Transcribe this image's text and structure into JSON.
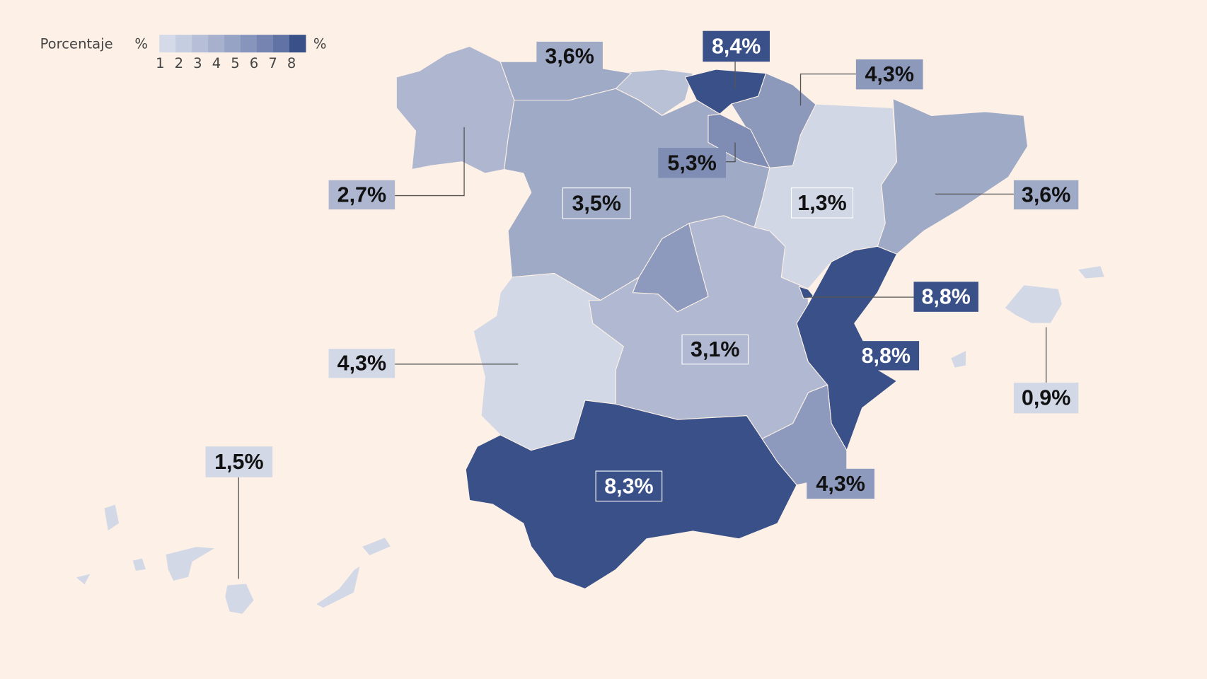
{
  "legend": {
    "title": "Porcentaje",
    "unit": "%",
    "scale": [
      "#d4dae8",
      "#c5cde0",
      "#b6bfd7",
      "#a7b1ce",
      "#97a3c5",
      "#8794bb",
      "#7584b1",
      "#6172a5",
      "#3a5088"
    ],
    "ticks": [
      1,
      2,
      3,
      4,
      5,
      6,
      7,
      8
    ],
    "end_unit": "%"
  },
  "regions": [
    {
      "label": "2,7%",
      "color": "#aeb6d0"
    },
    {
      "label": "3,6%",
      "color": "#9faac6"
    },
    {
      "label": "8,4%",
      "color": "#3a5088"
    },
    {
      "label": "4,3%",
      "color": "#8d99bb"
    },
    {
      "label": "5,3%",
      "color": "#7f8cb3"
    },
    {
      "label": "3,5%",
      "color": "#9faac6"
    },
    {
      "label": "1,3%",
      "color": "#d1d7e5"
    },
    {
      "label": "3,6%",
      "color": "#9faac6"
    },
    {
      "label": "8,8%",
      "color": "#3a5088"
    },
    {
      "label": "8,8%",
      "color": "#3a5088"
    },
    {
      "label": "3,1%",
      "color": "#b0b8d2"
    },
    {
      "label": "4,3%",
      "color": "#d2d8e6"
    },
    {
      "label": "0,9%",
      "color": "#d2d8e6"
    },
    {
      "label": "1,5%",
      "color": "#d2d8e6"
    },
    {
      "label": "8,3%",
      "color": "#3a5088"
    },
    {
      "label": "4,3%",
      "color": "#8e9abd"
    }
  ]
}
